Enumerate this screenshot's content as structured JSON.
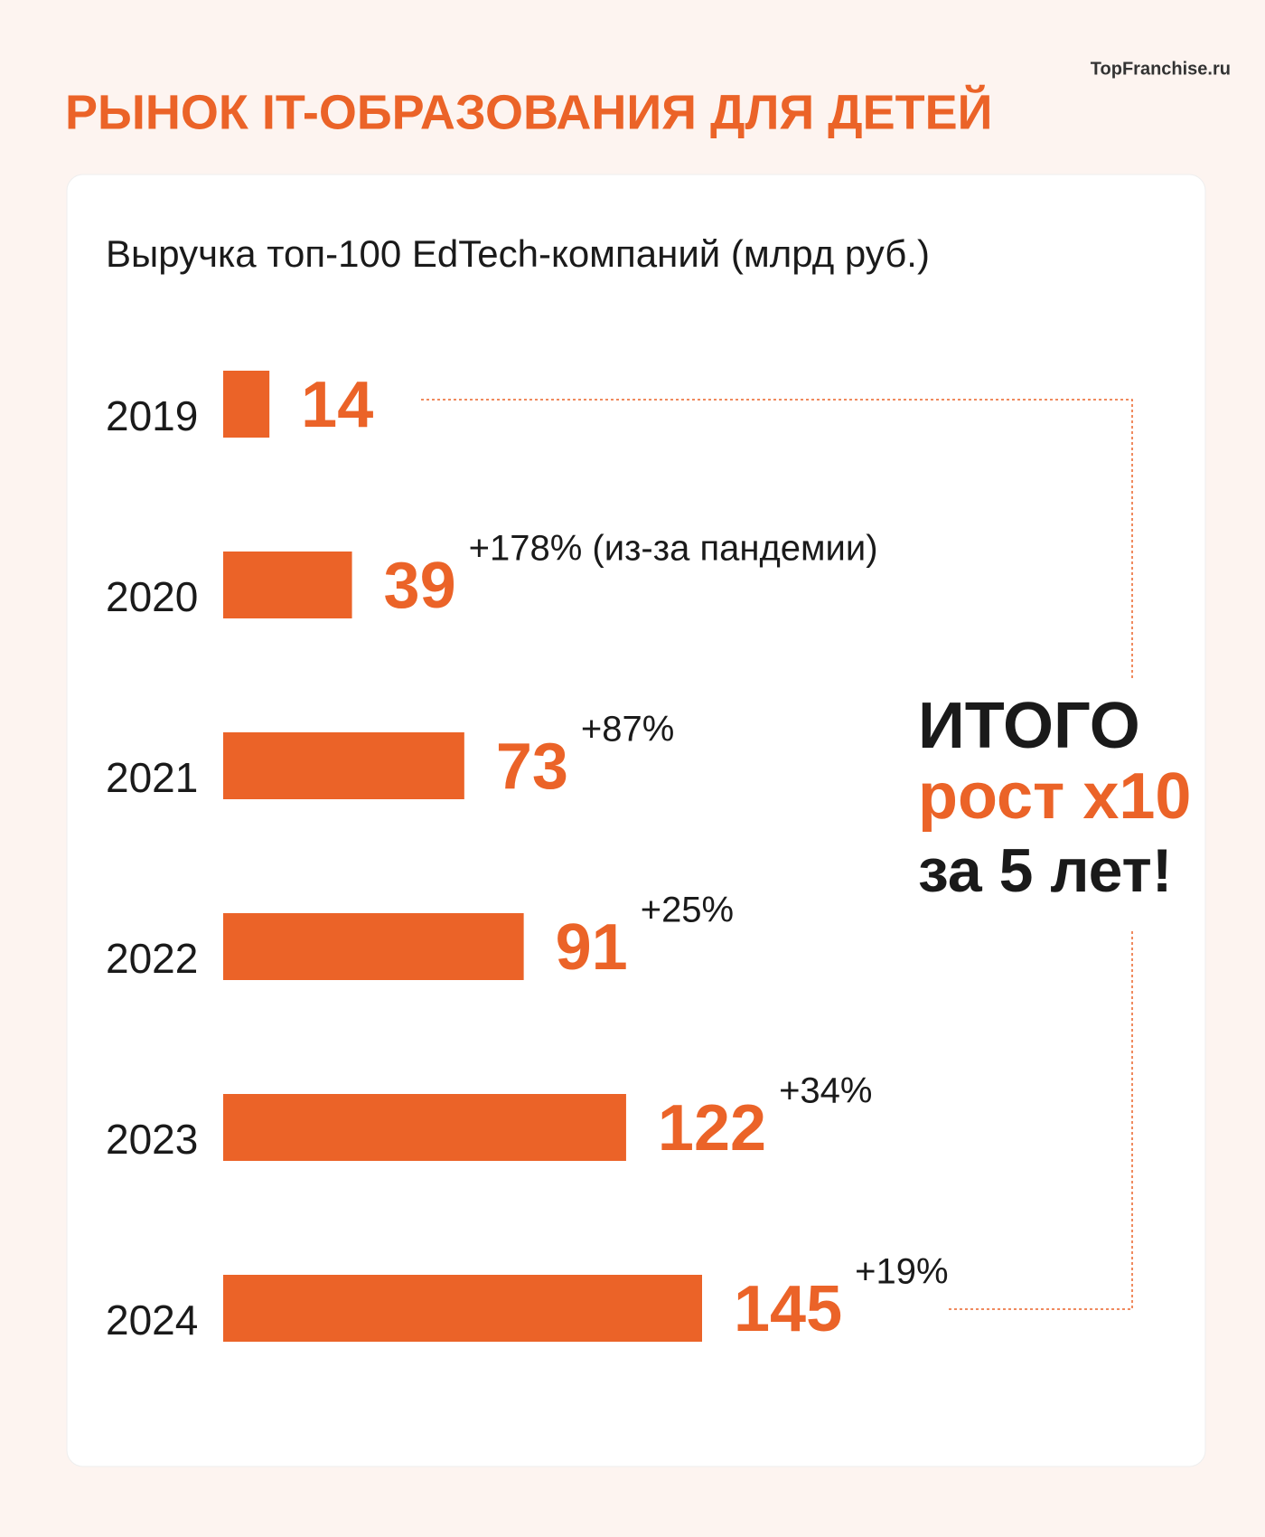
{
  "brand": "TopFranchise.ru",
  "title": "РЫНОК IT-ОБРАЗОВАНИЯ ДЛЯ ДЕТЕЙ",
  "chart_data": {
    "type": "bar",
    "orientation": "horizontal",
    "title": "Выручка топ-100 EdTech-компаний (млрд руб.)",
    "categories": [
      "2019",
      "2020",
      "2021",
      "2022",
      "2023",
      "2024"
    ],
    "values": [
      14,
      39,
      73,
      91,
      122,
      145
    ],
    "color": "#eb6328",
    "annotations": [
      null,
      "+178% (из-за пандемии)",
      "+87%",
      "+25%",
      "+34%",
      "+19%"
    ],
    "callout": [
      "ИТОГО",
      "рост x10",
      "за 5 лет!"
    ]
  }
}
